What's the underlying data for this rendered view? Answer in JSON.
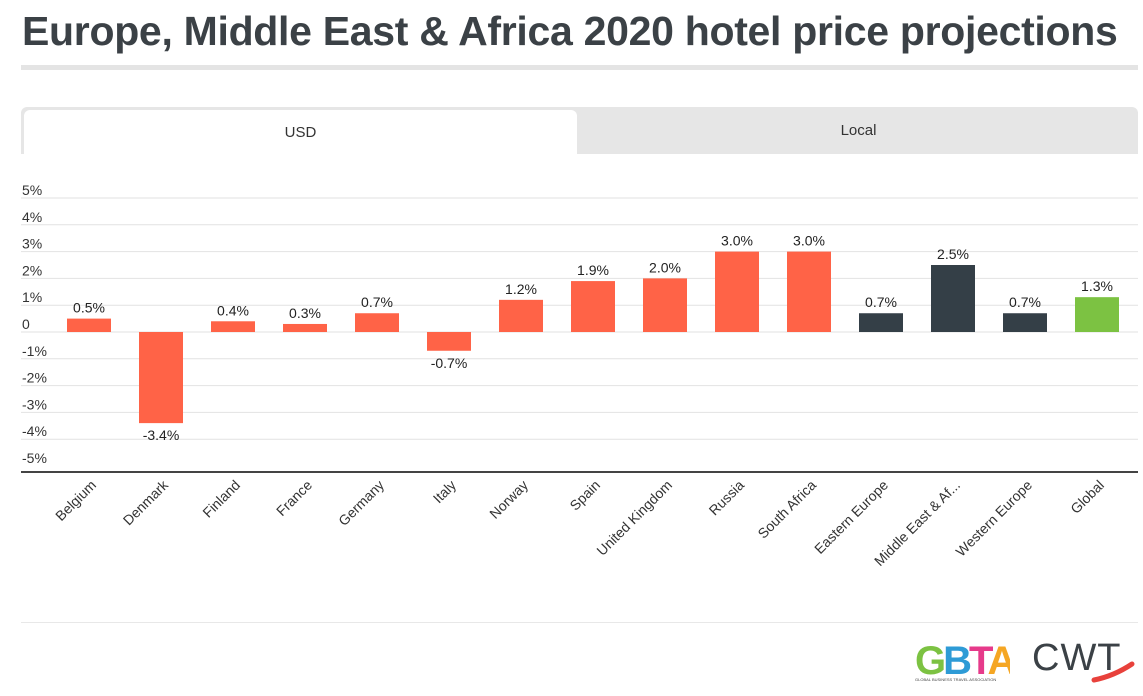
{
  "header": {
    "title": "Europe, Middle East & Africa 2020 hotel price projections"
  },
  "tabs": [
    {
      "label": "USD",
      "active": true
    },
    {
      "label": "Local",
      "active": false
    }
  ],
  "logos": {
    "gbta": {
      "text": "GBTA",
      "tagline": "GLOBAL BUSINESS TRAVEL ASSOCIATION"
    },
    "cwt": {
      "text": "CWT"
    }
  },
  "colors": {
    "country": "#ff6347",
    "region": "#343f47",
    "global": "#7cc242",
    "title": "#3b4146"
  },
  "chart_data": {
    "type": "bar",
    "title": "",
    "xlabel": "",
    "ylabel": "",
    "ylim": [
      -5,
      5
    ],
    "yticks": [
      "5%",
      "4%",
      "3%",
      "2%",
      "1%",
      "0",
      "-1%",
      "-2%",
      "-3%",
      "-4%",
      "-5%"
    ],
    "grid": true,
    "categories": [
      "Belgium",
      "Denmark",
      "Finland",
      "France",
      "Germany",
      "Italy",
      "Norway",
      "Spain",
      "United Kingdom",
      "Russia",
      "South Africa",
      "Eastern Europe",
      "Middle East & Af...",
      "Western Europe",
      "Global"
    ],
    "values": [
      0.5,
      -3.4,
      0.4,
      0.3,
      0.7,
      -0.7,
      1.2,
      1.9,
      2.0,
      3.0,
      3.0,
      0.7,
      2.5,
      0.7,
      1.3
    ],
    "labels": [
      "0.5%",
      "-3.4%",
      "0.4%",
      "0.3%",
      "0.7%",
      "-0.7%",
      "1.2%",
      "1.9%",
      "2.0%",
      "3.0%",
      "3.0%",
      "0.7%",
      "2.5%",
      "0.7%",
      "1.3%"
    ],
    "groups": [
      "country",
      "country",
      "country",
      "country",
      "country",
      "country",
      "country",
      "country",
      "country",
      "country",
      "country",
      "region",
      "region",
      "region",
      "global"
    ]
  }
}
